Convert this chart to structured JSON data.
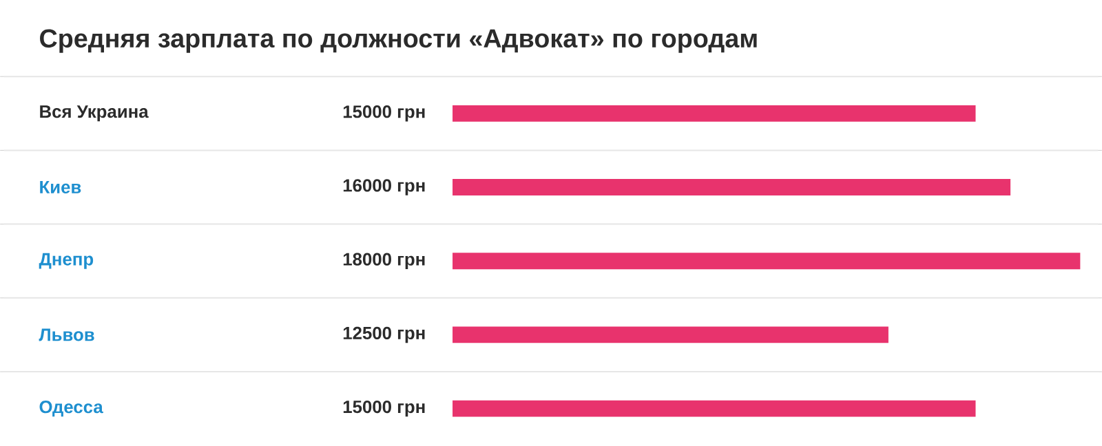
{
  "chart_data": {
    "type": "bar",
    "orientation": "horizontal",
    "title": "Средняя зарплата по должности «Адвокат» по городам",
    "categories": [
      "Вся Украина",
      "Киев",
      "Днепр",
      "Львов",
      "Одесса"
    ],
    "values": [
      15000,
      16000,
      18000,
      12500,
      15000
    ],
    "value_labels": [
      "15000 грн",
      "16000 грн",
      "18000 грн",
      "12500 грн",
      "15000 грн"
    ],
    "color": "#e8336d",
    "grid": "y"
  }
}
